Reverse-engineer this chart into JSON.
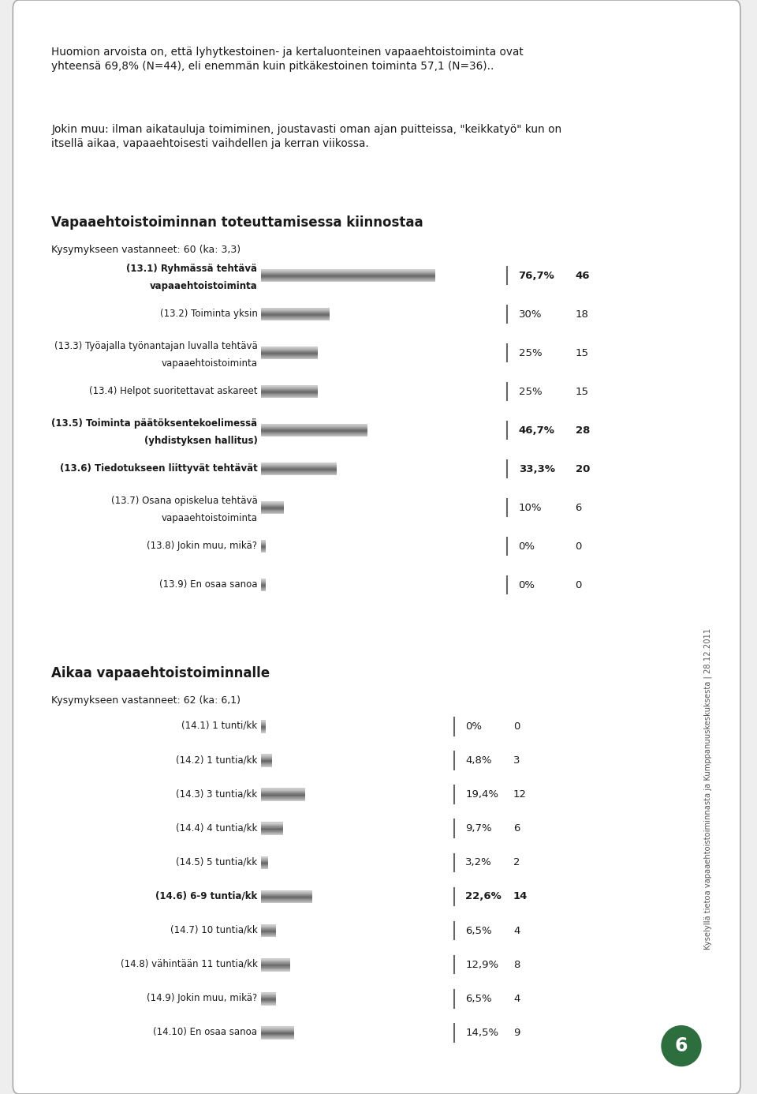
{
  "page_bg": "#eeeeee",
  "card_bg": "#ffffff",
  "intro_text1": "Huomion arvoista on, että lyhytkestoinen- ja kertaluonteinen vapaaehtoistoiminta ovat\nyhteensä 69,8% (N=44), eli enemmän kuin pitkäkestoinen toiminta 57,1 (N=36)..",
  "intro_text2": "Jokin muu: ilman aikatauluja toimiminen, joustavasti oman ajan puitteissa, \"keikkatyö\" kun on\nitsellä aikaa, vapaaehtoisesti vaihdellen ja kerran viikossa.",
  "section1_title": "Vapaaehtoistoiminnan toteuttamisessa kiinnostaa",
  "section1_subtitle": "Kysymykseen vastanneet: 60 (ka: 3,3)",
  "section1_bars": [
    {
      "label": "(13.1) Ryhmässä tehtävä\nvapaaehtoistoiminta",
      "pct": 76.7,
      "pct_str": "76,7%",
      "n": "46",
      "bold": true
    },
    {
      "label": "(13.2) Toiminta yksin",
      "pct": 30.0,
      "pct_str": "30%",
      "n": "18",
      "bold": false
    },
    {
      "label": "(13.3) Työajalla työnantajan luvalla tehtävä\nvapaaehtoistoiminta",
      "pct": 25.0,
      "pct_str": "25%",
      "n": "15",
      "bold": false
    },
    {
      "label": "(13.4) Helpot suoritettavat askareet",
      "pct": 25.0,
      "pct_str": "25%",
      "n": "15",
      "bold": false
    },
    {
      "label": "(13.5) Toiminta päätöksentekoelimessä\n(yhdistyksen hallitus)",
      "pct": 46.7,
      "pct_str": "46,7%",
      "n": "28",
      "bold": true
    },
    {
      "label": "(13.6) Tiedotukseen liittyvät tehtävät",
      "pct": 33.3,
      "pct_str": "33,3%",
      "n": "20",
      "bold": true
    },
    {
      "label": "(13.7) Osana opiskelua tehtävä\nvapaaehtoistoiminta",
      "pct": 10.0,
      "pct_str": "10%",
      "n": "6",
      "bold": false
    },
    {
      "label": "(13.8) Jokin muu, mikä?",
      "pct": 0.0,
      "pct_str": "0%",
      "n": "0",
      "bold": false
    },
    {
      "label": "(13.9) En osaa sanoa",
      "pct": 0.0,
      "pct_str": "0%",
      "n": "0",
      "bold": false
    }
  ],
  "section2_title": "Aikaa vapaaehtoistoiminnalle",
  "section2_subtitle": "Kysymykseen vastanneet: 62 (ka: 6,1)",
  "section2_bars": [
    {
      "label": "(14.1) 1 tunti/kk",
      "pct": 0.0,
      "pct_str": "0%",
      "n": "0",
      "bold": false
    },
    {
      "label": "(14.2) 1 tuntia/kk",
      "pct": 4.8,
      "pct_str": "4,8%",
      "n": "3",
      "bold": false
    },
    {
      "label": "(14.3) 3 tuntia/kk",
      "pct": 19.4,
      "pct_str": "19,4%",
      "n": "12",
      "bold": false
    },
    {
      "label": "(14.4) 4 tuntia/kk",
      "pct": 9.7,
      "pct_str": "9,7%",
      "n": "6",
      "bold": false
    },
    {
      "label": "(14.5) 5 tuntia/kk",
      "pct": 3.2,
      "pct_str": "3,2%",
      "n": "2",
      "bold": false
    },
    {
      "label": "(14.6) 6-9 tuntia/kk",
      "pct": 22.6,
      "pct_str": "22,6%",
      "n": "14",
      "bold": true
    },
    {
      "label": "(14.7) 10 tuntia/kk",
      "pct": 6.5,
      "pct_str": "6,5%",
      "n": "4",
      "bold": false
    },
    {
      "label": "(14.8) vähintään 11 tuntia/kk",
      "pct": 12.9,
      "pct_str": "12,9%",
      "n": "8",
      "bold": false
    },
    {
      "label": "(14.9) Jokin muu, mikä?",
      "pct": 6.5,
      "pct_str": "6,5%",
      "n": "4",
      "bold": false
    },
    {
      "label": "(14.10) En osaa sanoa",
      "pct": 14.5,
      "pct_str": "14,5%",
      "n": "9",
      "bold": false
    }
  ],
  "vertical_line_color": "#666666",
  "side_text": "Kyselyllä tietoa vapaaehtoistoiminnasta ja Kumppanuuskeskuksesta | 28.12.2011",
  "page_number": "6",
  "page_num_bg": "#2d6e3e",
  "text_color": "#1a1a1a"
}
